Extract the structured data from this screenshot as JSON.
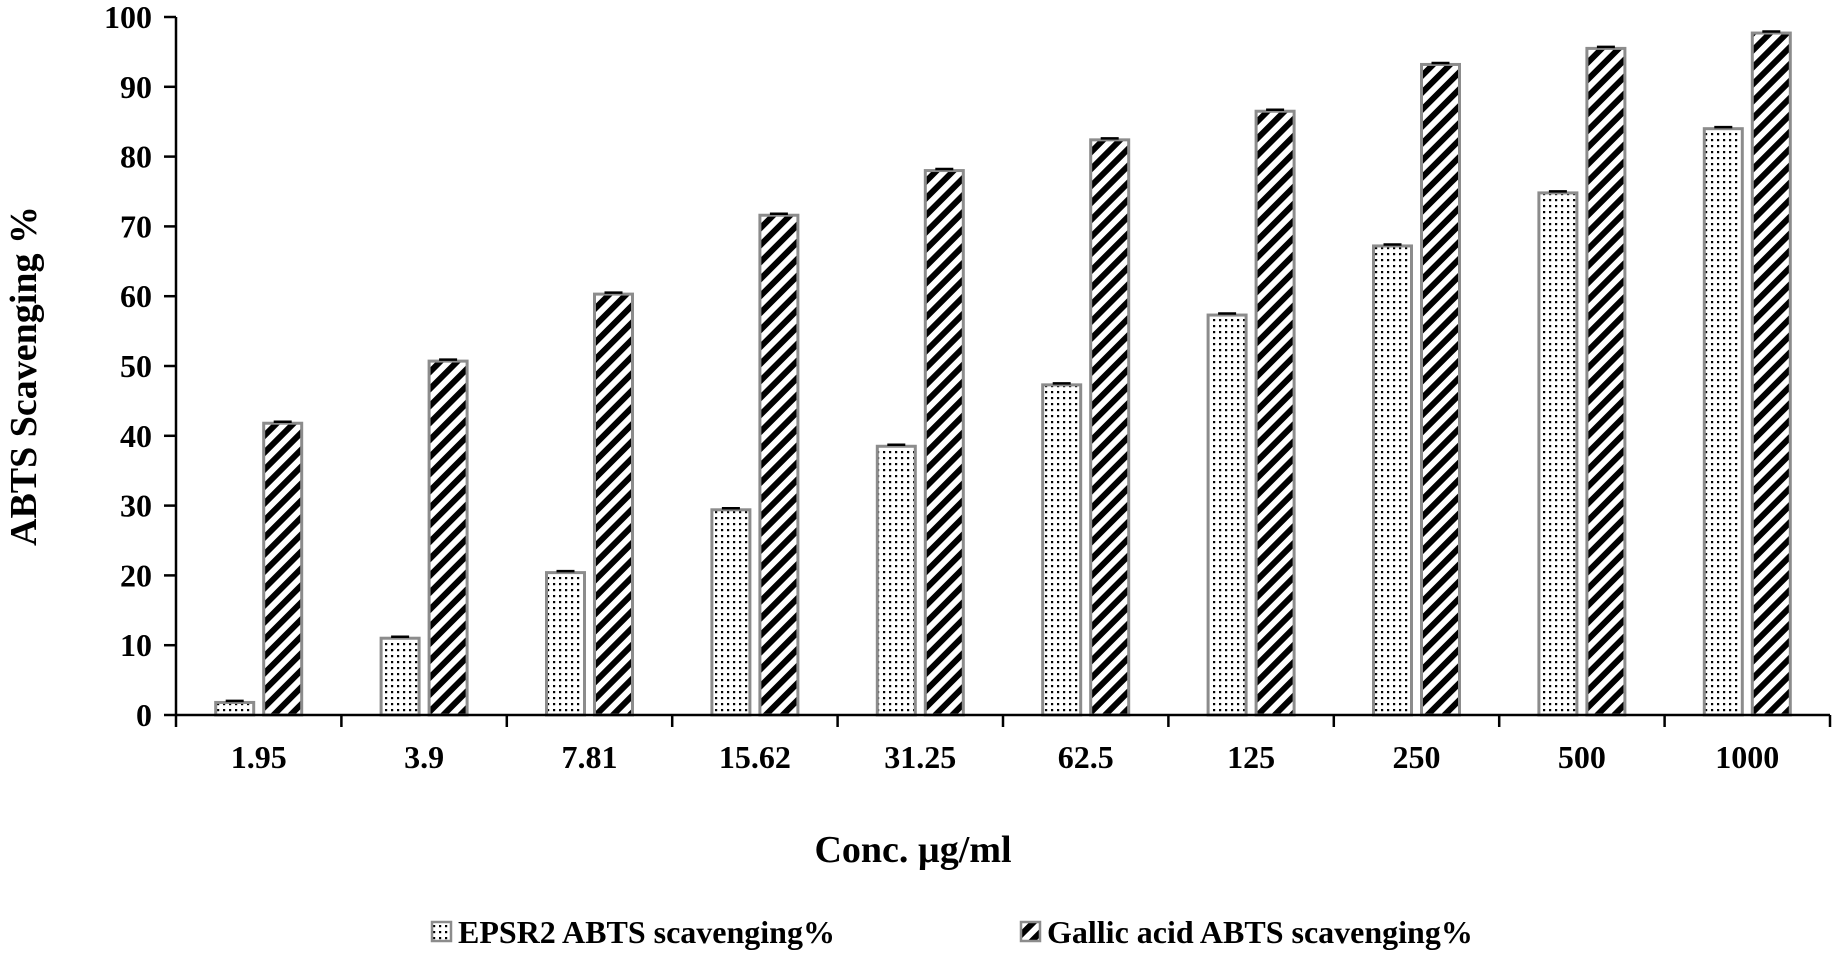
{
  "chart_data": {
    "type": "bar",
    "categories": [
      "1.95",
      "3.9",
      "7.81",
      "15.62",
      "31.25",
      "62.5",
      "125",
      "250",
      "500",
      "1000"
    ],
    "series": [
      {
        "name": "EPSR2 ABTS scavenging%",
        "pattern": "dots",
        "values": [
          1.8,
          11.0,
          20.4,
          29.4,
          38.5,
          47.3,
          57.3,
          67.2,
          74.8,
          84.0
        ]
      },
      {
        "name": "Gallic acid ABTS scavenging%",
        "pattern": "diagonal-stripes",
        "values": [
          41.8,
          50.7,
          60.3,
          71.6,
          78.0,
          82.4,
          86.5,
          93.2,
          95.5,
          97.7
        ]
      }
    ],
    "xlabel": "Conc. µg/ml",
    "ylabel": "ABTS Scavenging %",
    "ylim": [
      0,
      100
    ],
    "yticks": [
      0,
      10,
      20,
      30,
      40,
      50,
      60,
      70,
      80,
      90,
      100
    ],
    "grid": false,
    "legend_position": "bottom",
    "error_bars": true
  },
  "colors": {
    "bar_border": "#8c8c8c",
    "pattern_ink": "#000000",
    "axis": "#000000"
  }
}
